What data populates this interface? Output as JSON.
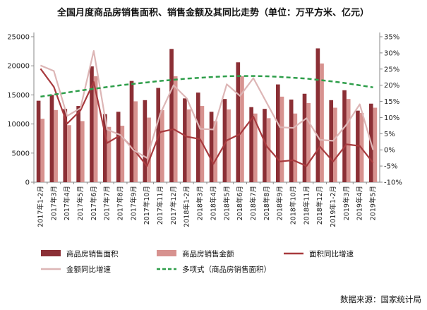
{
  "chart_data": {
    "type": "bar",
    "title": "全国月度商品房销售面积、销售金额及其同比走势（单位：万平方米、亿元）",
    "source": "数据来源：国家统计局",
    "categories": [
      "2017年1-2月",
      "2017年3月",
      "2017年4月",
      "2017年5月",
      "2017年6月",
      "2017年7月",
      "2017年8月",
      "2017年9月",
      "2017年10月",
      "2017年11月",
      "2017年12月",
      "2018年1-2月",
      "2018年3月",
      "2018年4月",
      "2018年5月",
      "2018年6月",
      "2018年7月",
      "2018年8月",
      "2018年9月",
      "2018年10月",
      "2018年11月",
      "2018年12月",
      "2019年1-2月",
      "2019年3月",
      "2019年4月",
      "2019年5月"
    ],
    "x_labels": [
      "2017年1-2月",
      "2017年3月",
      "2017年4月",
      "2017年5月",
      "2017年6月",
      "2017年7月",
      "2017年8月",
      "2017年9月",
      "2017年10月",
      "2017年11月",
      "2017年12月",
      "2018年1-2月",
      "2018年3月",
      "2018年4月",
      "2018年5月",
      "2018年6月",
      "2018年7月",
      "2018年8月",
      "2018年9月",
      "2018年10月",
      "2018年11月",
      "2018年12月",
      "2019年1-2月",
      "2019年3月",
      "2019年4月",
      "2019年5月"
    ],
    "y_left": {
      "ylim": [
        0,
        25000
      ],
      "ticks": [
        "0",
        "5000",
        "10000",
        "15000",
        "20000",
        "25000"
      ]
    },
    "y_right": {
      "ylim": [
        -10,
        35
      ],
      "ticks": [
        "-10%",
        "-5%",
        "0%",
        "5%",
        "10%",
        "15%",
        "20%",
        "25%",
        "30%",
        "35%"
      ]
    },
    "series": [
      {
        "name": "商品房销售面积",
        "type": "bar",
        "axis": "left",
        "color": "#8B2F35",
        "values": [
          14000,
          15000,
          12600,
          13100,
          19900,
          11700,
          12100,
          17400,
          14100,
          16200,
          22900,
          14400,
          15400,
          12100,
          14300,
          20600,
          12900,
          12600,
          16800,
          14200,
          15200,
          23000,
          14100,
          15800,
          12300,
          13500
        ]
      },
      {
        "name": "商品房销售金额",
        "type": "bar",
        "axis": "left",
        "color": "#D7928F",
        "values": [
          10900,
          12400,
          9800,
          10500,
          18200,
          9500,
          9700,
          13900,
          11100,
          12400,
          18200,
          12500,
          13100,
          10500,
          12500,
          18200,
          11800,
          11000,
          14700,
          11800,
          13600,
          20400,
          12800,
          14300,
          11900,
          12800
        ]
      },
      {
        "name": "面积同比增速",
        "type": "line",
        "axis": "right",
        "color": "#A83A3E",
        "values": [
          25.1,
          19.5,
          8.1,
          12.2,
          21.0,
          2.1,
          4.5,
          0.2,
          -5.0,
          5.5,
          6.4,
          4.1,
          3.3,
          -4.3,
          2.9,
          4.9,
          10.3,
          1.1,
          -3.6,
          -3.2,
          -5.0,
          1.0,
          -3.6,
          1.7,
          1.2,
          -4.0
        ]
      },
      {
        "name": "金额同比增速",
        "type": "line",
        "axis": "right",
        "color": "#DDB6B6",
        "values": [
          26.1,
          24.4,
          10.5,
          12.9,
          30.6,
          6.3,
          4.6,
          -0.1,
          -2.5,
          11.1,
          20.0,
          15.9,
          6.5,
          6.3,
          20.3,
          16.7,
          22.2,
          14.6,
          7.0,
          6.8,
          9.8,
          3.1,
          2.8,
          7.8,
          14.1,
          0.0
        ]
      },
      {
        "name": "多项式（商品房销售面积）",
        "type": "trend",
        "axis": "left",
        "color": "#2E9E4A",
        "values": [
          14700,
          15050,
          15400,
          15750,
          16050,
          16350,
          16650,
          16900,
          17150,
          17400,
          17600,
          17800,
          17950,
          18100,
          18200,
          18250,
          18250,
          18200,
          18100,
          17950,
          17800,
          17550,
          17300,
          17000,
          16650,
          16300
        ]
      }
    ],
    "legend_position": "bottom",
    "grid": false
  }
}
